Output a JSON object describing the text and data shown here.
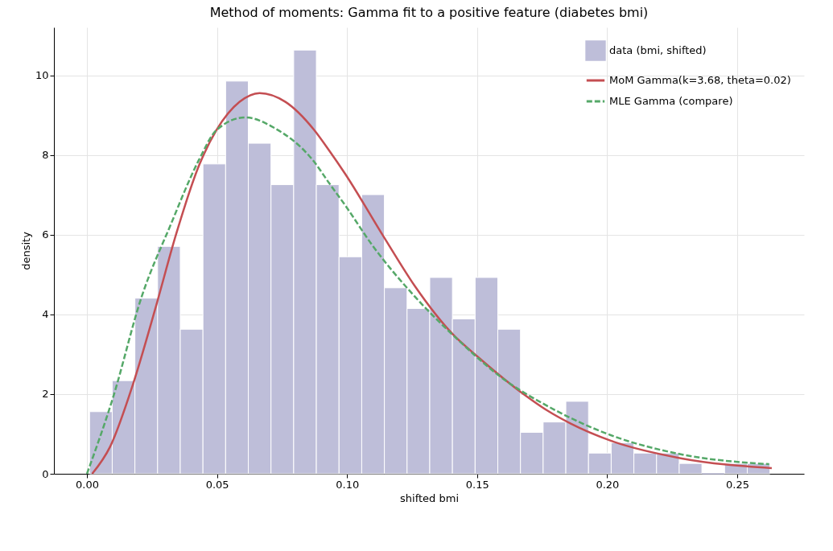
{
  "chart_data": {
    "type": "histogram",
    "title": "Method of moments: Gamma fit to a positive feature (diabetes bmi)",
    "xlabel": "shifted bmi",
    "ylabel": "density",
    "bins": [
      0.001,
      0.00972,
      0.01844,
      0.02716,
      0.03588,
      0.0446,
      0.05332,
      0.06204,
      0.07076,
      0.07948,
      0.0882,
      0.09692,
      0.10564,
      0.11436,
      0.12308,
      0.1318,
      0.14052,
      0.14924,
      0.15796,
      0.16668,
      0.1754,
      0.18412,
      0.19284,
      0.20156,
      0.21028,
      0.219,
      0.22772,
      0.23644,
      0.24516,
      0.25388,
      0.2626
    ],
    "series": [
      {
        "name": "data (bmi, shifted)",
        "color": "#bebed9",
        "values": [
          1.56,
          2.34,
          4.41,
          5.71,
          3.63,
          7.78,
          9.86,
          8.3,
          7.26,
          10.64,
          7.26,
          5.45,
          7.01,
          4.67,
          4.15,
          4.93,
          3.89,
          4.93,
          3.63,
          1.04,
          1.3,
          1.82,
          0.52,
          0.78,
          0.52,
          0.52,
          0.26,
          0,
          0.26,
          0.26
        ]
      },
      {
        "name": "MoM Gamma(k=3.68, theta=0.02)",
        "type": "line",
        "color": "#c44e52",
        "line_style": "solid",
        "x": [
          0.002,
          0.0089,
          0.0178,
          0.0266,
          0.0343,
          0.0432,
          0.0498,
          0.0587,
          0.0664,
          0.0763,
          0.0874,
          0.0931,
          0.0992,
          0.1141,
          0.1262,
          0.1407,
          0.1506,
          0.1683,
          0.1767,
          0.186,
          0.2014,
          0.2283,
          0.2633
        ],
        "values": [
          0,
          0.68,
          2.27,
          4.22,
          6.02,
          7.76,
          8.63,
          9.34,
          9.56,
          9.34,
          8.63,
          8.12,
          7.54,
          5.95,
          4.7,
          3.5,
          2.92,
          1.98,
          1.6,
          1.26,
          0.83,
          0.39,
          0.14
        ]
      },
      {
        "name": "MLE Gamma (compare)",
        "type": "line",
        "color": "#55a868",
        "line_style": "dashed",
        "x": [
          0,
          0.01,
          0.021,
          0.0321,
          0.0432,
          0.0498,
          0.0609,
          0.0719,
          0.0874,
          0.0931,
          0.0992,
          0.1097,
          0.1262,
          0.1429,
          0.1593,
          0.1771,
          0.2014,
          0.2283,
          0.2623
        ],
        "values": [
          0,
          1.91,
          4.44,
          6.24,
          7.9,
          8.63,
          8.95,
          8.69,
          7.83,
          7.3,
          6.75,
          5.74,
          4.44,
          3.35,
          2.42,
          1.7,
          0.97,
          0.49,
          0.24
        ]
      }
    ],
    "xlim": [
      -0.0127,
      0.2757
    ],
    "ylim": [
      0,
      11.21
    ],
    "xticks": [
      {
        "value": 0,
        "label": "0.00"
      },
      {
        "value": 0.05,
        "label": "0.05"
      },
      {
        "value": 0.1,
        "label": "0.10"
      },
      {
        "value": 0.15,
        "label": "0.15"
      },
      {
        "value": 0.2,
        "label": "0.20"
      },
      {
        "value": 0.25,
        "label": "0.25"
      }
    ],
    "yticks": [
      0,
      2,
      4,
      6,
      8,
      10
    ],
    "grid": true,
    "legend": "top right"
  }
}
